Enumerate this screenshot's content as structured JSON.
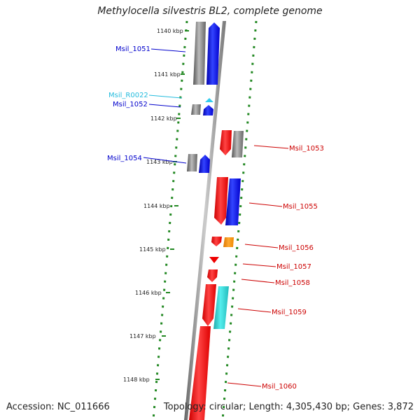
{
  "title": "Methylocella silvestris BL2, complete genome",
  "accession": "Accession: NC_011666",
  "topology": "Topology: circular; Length: 4,305,430 bp; Genes: 3,872",
  "ruler": [
    "1140 kbp",
    "1141 kbp",
    "1142 kbp",
    "1143 kbp",
    "1144 kbp",
    "1145 kbp",
    "1146 kbp",
    "1147 kbp",
    "1148 kbp"
  ],
  "colors": {
    "forward_feature": "#0000ee",
    "reverse_feature": "#ee0000",
    "rna": "#33ccee",
    "other_feature": "#ff8800",
    "gray_feature": "#777777",
    "dots": "#228822",
    "backbone": "#888888"
  },
  "left_labels": [
    {
      "text": "Msil_1051",
      "color": "#0000cc"
    },
    {
      "text": "Msil_R0022",
      "color": "#22bbdd"
    },
    {
      "text": "Msil_1052",
      "color": "#0000cc"
    },
    {
      "text": "Msil_1054",
      "color": "#0000cc"
    }
  ],
  "right_labels": [
    {
      "text": "Msil_1053",
      "color": "#cc0000"
    },
    {
      "text": "Msil_1055",
      "color": "#cc0000"
    },
    {
      "text": "Msil_1056",
      "color": "#cc0000"
    },
    {
      "text": "Msil_1057",
      "color": "#cc0000"
    },
    {
      "text": "Msil_1058",
      "color": "#cc0000"
    },
    {
      "text": "Msil_1059",
      "color": "#cc0000"
    },
    {
      "text": "Msil_1060",
      "color": "#cc0000"
    }
  ]
}
